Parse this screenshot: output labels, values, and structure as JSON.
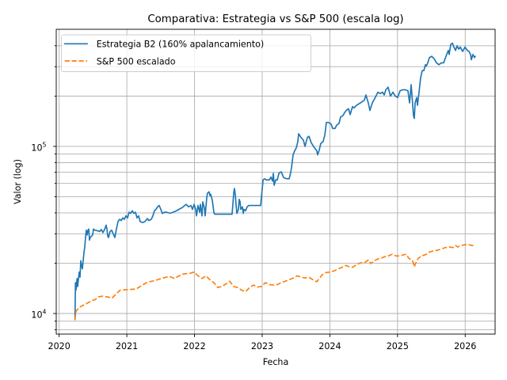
{
  "chart_data": {
    "type": "line",
    "title": "Comparativa: Estrategia vs S&P 500 (escala log)",
    "xlabel": "Fecha",
    "ylabel": "Valor (log)",
    "xscale": "linear (dates, years)",
    "yscale": "log",
    "xlim": [
      2019.957,
      2026.442
    ],
    "ylim": [
      7530,
      502000
    ],
    "grid": true,
    "grid_which": "both",
    "x_ticks": [
      2020,
      2021,
      2022,
      2023,
      2024,
      2025,
      2026
    ],
    "x_tick_labels": [
      "2020",
      "2021",
      "2022",
      "2023",
      "2024",
      "2025",
      "2026"
    ],
    "y_major_ticks": [
      10000,
      100000
    ],
    "y_tick_labels": [
      {
        "base": "10",
        "exp": "4"
      },
      {
        "base": "10",
        "exp": "5"
      }
    ],
    "y_minor_ticks": [
      8000,
      9000,
      20000,
      30000,
      40000,
      50000,
      60000,
      70000,
      80000,
      90000,
      200000,
      300000,
      400000
    ],
    "legend": {
      "location": "upper-left",
      "entries": [
        "Estrategia B2 (160% apalancamiento)",
        "S&P 500 escalado"
      ]
    },
    "series": [
      {
        "id": "strategy",
        "name": "Estrategia B2 (160% apalancamiento)",
        "color": "#1f77b4",
        "style": "solid",
        "x": [
          2020.234,
          2020.241,
          2020.249,
          2020.265,
          2020.273,
          2020.284,
          2020.296,
          2020.308,
          2020.32,
          2020.331,
          2020.343,
          2020.355,
          2020.366,
          2020.378,
          2020.39,
          2020.401,
          2020.413,
          2020.425,
          2020.437,
          2020.448,
          2020.46,
          2020.495,
          2020.507,
          2020.53,
          2020.565,
          2020.6,
          2020.624,
          2020.647,
          2020.671,
          2020.694,
          2020.706,
          2020.718,
          2020.729,
          2020.753,
          2020.776,
          2020.799,
          2020.823,
          2020.846,
          2020.87,
          2020.893,
          2020.917,
          2020.94,
          2020.963,
          2020.987,
          2021.01,
          2021.034,
          2021.057,
          2021.08,
          2021.104,
          2021.127,
          2021.151,
          2021.174,
          2021.197,
          2021.233,
          2021.268,
          2021.303,
          2021.326,
          2021.362,
          2021.385,
          2021.408,
          2021.432,
          2021.455,
          2021.478,
          2021.502,
          2021.525,
          2021.56,
          2021.584,
          2021.642,
          2021.724,
          2021.818,
          2021.876,
          2021.912,
          2021.947,
          2021.97,
          2021.994,
          2022.017,
          2022.029,
          2022.052,
          2022.076,
          2022.087,
          2022.111,
          2022.122,
          2022.146,
          2022.157,
          2022.181,
          2022.192,
          2022.216,
          2022.228,
          2022.239,
          2022.263,
          2022.286,
          2022.298,
          2022.555,
          2022.567,
          2022.579,
          2022.59,
          2022.602,
          2022.614,
          2022.626,
          2022.649,
          2022.661,
          2022.673,
          2022.684,
          2022.708,
          2022.72,
          2022.731,
          2022.755,
          2022.778,
          2022.802,
          2022.978,
          2022.989,
          2023.001,
          2023.013,
          2023.036,
          2023.059,
          2023.106,
          2023.13,
          2023.153,
          2023.165,
          2023.177,
          2023.2,
          2023.223,
          2023.247,
          2023.282,
          2023.317,
          2023.364,
          2023.399,
          2023.422,
          2023.434,
          2023.457,
          2023.48,
          2023.504,
          2023.527,
          2023.539,
          2023.574,
          2023.609,
          2023.633,
          2023.668,
          2023.691,
          2023.726,
          2023.773,
          2023.808,
          2023.819,
          2023.843,
          2023.866,
          2023.901,
          2023.925,
          2023.937,
          2023.948,
          2023.983,
          2024.018,
          2024.042,
          2024.077,
          2024.1,
          2024.135,
          2024.159,
          2024.194,
          2024.217,
          2024.241,
          2024.276,
          2024.3,
          2024.335,
          2024.358,
          2024.393,
          2024.451,
          2024.51,
          2024.533,
          2024.568,
          2024.592,
          2024.627,
          2024.662,
          2024.709,
          2024.744,
          2024.779,
          2024.803,
          2024.826,
          2024.861,
          2024.896,
          2024.932,
          2024.967,
          2025.002,
          2025.037,
          2025.072,
          2025.119,
          2025.154,
          2025.178,
          2025.201,
          2025.213,
          2025.236,
          2025.248,
          2025.26,
          2025.283,
          2025.295,
          2025.318,
          2025.342,
          2025.365,
          2025.389,
          2025.412,
          2025.424,
          2025.447,
          2025.471,
          2025.506,
          2025.541,
          2025.576,
          2025.611,
          2025.646,
          2025.681,
          2025.716,
          2025.751,
          2025.763,
          2025.786,
          2025.81,
          2025.833,
          2025.857,
          2025.88,
          2025.904,
          2025.927,
          2025.962,
          2025.997,
          2026.032,
          2026.056,
          2026.079,
          2026.091,
          2026.114,
          2026.138,
          2026.149
        ],
        "y": [
          9200,
          15300,
          13800,
          16200,
          14500,
          15900,
          17700,
          16500,
          20700,
          19300,
          18500,
          20700,
          23000,
          25000,
          28500,
          31500,
          29500,
          31500,
          32000,
          27500,
          28500,
          29500,
          32000,
          31500,
          31300,
          31000,
          31800,
          30500,
          31800,
          33800,
          32000,
          29000,
          28500,
          31000,
          31500,
          30000,
          28500,
          32000,
          35500,
          36600,
          36000,
          37300,
          36600,
          38400,
          37300,
          40400,
          39700,
          41200,
          39700,
          40400,
          37300,
          38400,
          35500,
          35000,
          35500,
          37000,
          36000,
          36600,
          38400,
          41200,
          42000,
          43500,
          44300,
          42000,
          39700,
          40400,
          40400,
          39800,
          41000,
          43000,
          45000,
          43500,
          44300,
          42000,
          45000,
          42000,
          38400,
          44300,
          40400,
          45000,
          38400,
          46600,
          42700,
          38400,
          49300,
          52500,
          53500,
          50800,
          51700,
          47500,
          40400,
          39300,
          39300,
          45000,
          52500,
          56000,
          51700,
          45000,
          39700,
          42000,
          48200,
          46600,
          42000,
          43500,
          39700,
          42000,
          41200,
          43500,
          44300,
          44300,
          50000,
          55800,
          63000,
          64000,
          63000,
          63000,
          65500,
          62000,
          69000,
          58500,
          63000,
          63000,
          69000,
          70500,
          65000,
          64000,
          64000,
          70000,
          75000,
          89000,
          94000,
          98000,
          107000,
          119000,
          113000,
          109000,
          100000,
          113000,
          115000,
          105000,
          98000,
          94000,
          89000,
          95000,
          104000,
          107000,
          117000,
          127000,
          139000,
          139000,
          136000,
          128000,
          128000,
          134000,
          137000,
          150000,
          153000,
          159000,
          164000,
          168000,
          155000,
          173000,
          170000,
          176000,
          182000,
          189000,
          203000,
          182000,
          164000,
          182000,
          193000,
          211000,
          207000,
          211000,
          203000,
          218000,
          226000,
          200000,
          211000,
          200000,
          196000,
          215000,
          218000,
          218000,
          215000,
          182000,
          234000,
          203000,
          153000,
          147000,
          182000,
          196000,
          176000,
          211000,
          258000,
          284000,
          284000,
          308000,
          302000,
          316000,
          340000,
          346000,
          334000,
          316000,
          308000,
          316000,
          316000,
          346000,
          375000,
          355000,
          407000,
          415000,
          393000,
          375000,
          400000,
          382000,
          393000,
          370000,
          393000,
          375000,
          370000,
          355000,
          330000,
          355000,
          340000,
          346000
        ]
      },
      {
        "id": "sp500",
        "name": "S&P 500 escalado",
        "color": "#ff7f0e",
        "style": "dashed",
        "x": [
          2020.234,
          2020.249,
          2020.296,
          2020.355,
          2020.413,
          2020.472,
          2020.53,
          2020.589,
          2020.647,
          2020.784,
          2020.901,
          2021.135,
          2021.291,
          2021.447,
          2021.584,
          2021.642,
          2021.701,
          2021.818,
          2021.935,
          2021.994,
          2022.052,
          2022.111,
          2022.169,
          2022.228,
          2022.286,
          2022.345,
          2022.403,
          2022.462,
          2022.52,
          2022.579,
          2022.637,
          2022.696,
          2022.755,
          2022.813,
          2022.872,
          2022.93,
          2022.989,
          2023.048,
          2023.106,
          2023.165,
          2023.223,
          2023.282,
          2023.34,
          2023.399,
          2023.457,
          2023.516,
          2023.574,
          2023.633,
          2023.691,
          2023.75,
          2023.808,
          2023.843,
          2023.89,
          2023.948,
          2024.007,
          2024.065,
          2024.124,
          2024.182,
          2024.241,
          2024.276,
          2024.335,
          2024.393,
          2024.451,
          2024.51,
          2024.568,
          2024.604,
          2024.651,
          2024.709,
          2024.768,
          2024.826,
          2024.861,
          2024.92,
          2024.979,
          2025.037,
          2025.096,
          2025.131,
          2025.166,
          2025.201,
          2025.225,
          2025.248,
          2025.26,
          2025.283,
          2025.307,
          2025.354,
          2025.412,
          2025.471,
          2025.529,
          2025.588,
          2025.646,
          2025.705,
          2025.763,
          2025.821,
          2025.857,
          2025.892,
          2025.939,
          2025.997,
          2026.056,
          2026.103,
          2026.149
        ],
        "y": [
          9200,
          10300,
          10900,
          11200,
          11500,
          11900,
          12100,
          12600,
          12700,
          12400,
          13800,
          14000,
          15300,
          15900,
          16500,
          16600,
          16200,
          17200,
          17400,
          17700,
          16800,
          16200,
          16800,
          15900,
          15300,
          14300,
          14500,
          15000,
          15600,
          14500,
          14300,
          13800,
          13500,
          14300,
          14800,
          14400,
          14500,
          15300,
          14900,
          14800,
          14900,
          15300,
          15600,
          15900,
          16300,
          16800,
          16500,
          16300,
          16500,
          15900,
          15500,
          16200,
          17100,
          17600,
          17700,
          18000,
          18500,
          18900,
          19400,
          19100,
          18900,
          19600,
          20100,
          20100,
          20900,
          19900,
          20600,
          21200,
          21500,
          22000,
          22100,
          22600,
          22100,
          22100,
          22500,
          22600,
          21400,
          21000,
          20600,
          19000,
          19600,
          20600,
          21400,
          22100,
          22500,
          23300,
          23700,
          23900,
          24300,
          24800,
          25000,
          24800,
          25500,
          25000,
          25500,
          25800,
          25800,
          25500,
          25500
        ]
      }
    ]
  }
}
